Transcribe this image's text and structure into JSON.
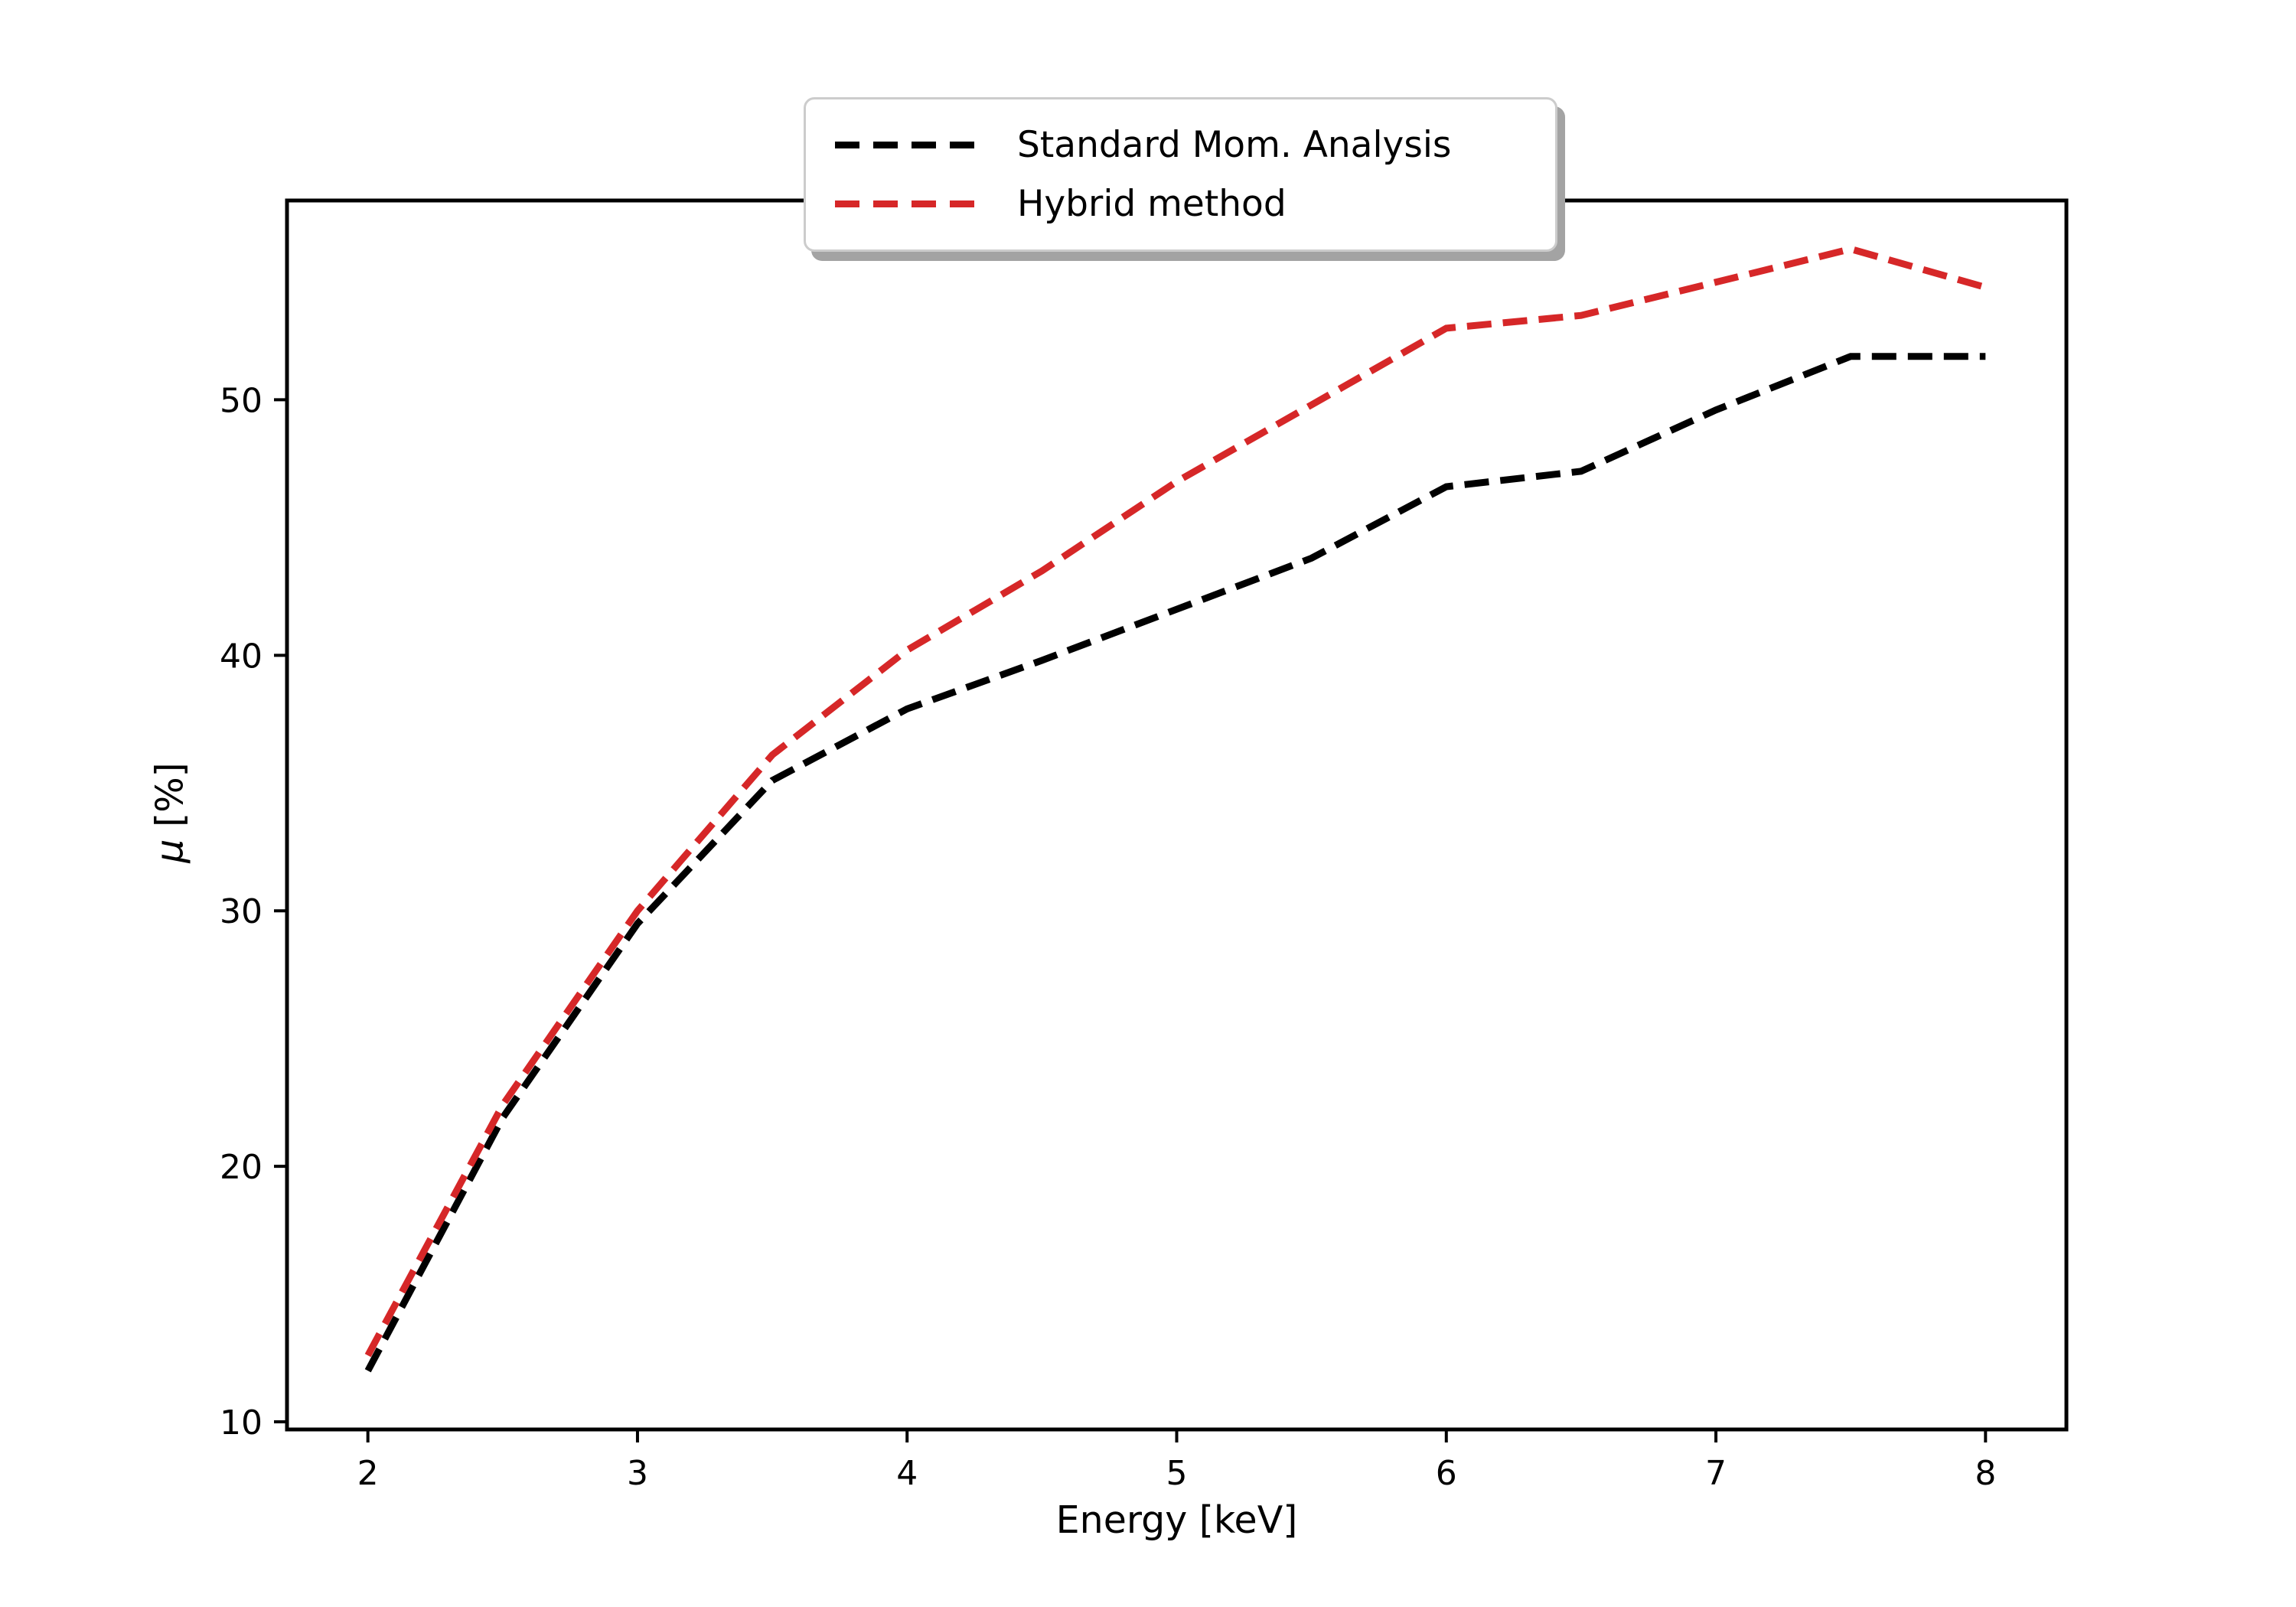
{
  "figure": {
    "background": "#ffffff",
    "axes_edge_color": "#000000"
  },
  "chart_data": {
    "type": "line",
    "title": "",
    "xlabel": "Energy [keV]",
    "ylabel": "μ [%]",
    "ylabel_math": {
      "symbol": "μ",
      "unit": " [%]"
    },
    "x": [
      2,
      2.5,
      3,
      3.5,
      4,
      4.5,
      5,
      5.5,
      6,
      6.5,
      7,
      7.5,
      8
    ],
    "series": [
      {
        "name": "Standard Mom. Analysis",
        "color": "#000000",
        "linestyle": "dashed",
        "values": [
          12.0,
          21.9,
          29.5,
          35.1,
          37.9,
          39.8,
          41.8,
          43.8,
          46.6,
          47.2,
          49.6,
          51.7,
          51.7
        ]
      },
      {
        "name": "Hybrid method",
        "color": "#d62728",
        "linestyle": "dashed",
        "values": [
          12.6,
          22.4,
          30.0,
          36.1,
          40.2,
          43.3,
          46.8,
          49.8,
          52.8,
          53.3,
          54.6,
          55.9,
          54.4
        ]
      }
    ],
    "x_ticks": [
      2,
      3,
      4,
      5,
      6,
      7,
      8
    ],
    "y_ticks": [
      10,
      20,
      30,
      40,
      50
    ],
    "xlim": [
      1.7,
      8.3
    ],
    "ylim": [
      9.7,
      57.8
    ],
    "grid": false,
    "legend_position": "upper center",
    "legend_shadow": true
  }
}
